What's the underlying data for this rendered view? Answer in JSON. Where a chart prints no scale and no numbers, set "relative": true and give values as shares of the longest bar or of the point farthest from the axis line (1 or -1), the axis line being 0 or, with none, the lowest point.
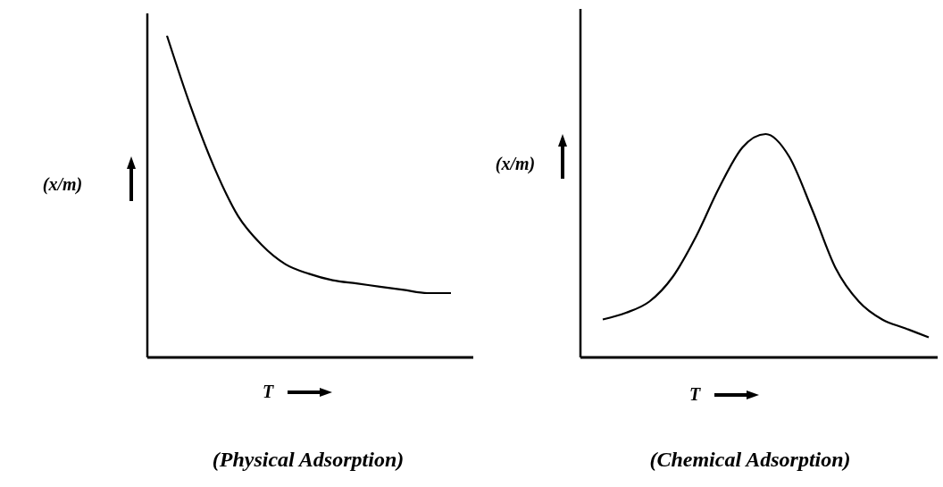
{
  "chart_data": [
    {
      "type": "line",
      "title": "(Physical Adsorption)",
      "ylabel": "(x/m)",
      "xlabel": "T",
      "relative": true,
      "color": "#000000",
      "categories": [
        null,
        null,
        null,
        null,
        null,
        null,
        null,
        null,
        null,
        null,
        null,
        null,
        null
      ],
      "values": [
        1,
        0.78,
        0.59,
        0.44,
        0.35,
        0.29,
        0.26,
        0.24,
        0.23,
        0.22,
        0.21,
        0.2,
        0.2
      ]
    },
    {
      "type": "line",
      "title": "(Chemical Adsorption)",
      "ylabel": "(x/m)",
      "xlabel": "T",
      "relative": true,
      "color": "#000000",
      "categories": [
        null,
        null,
        null,
        null,
        null,
        null,
        null,
        null,
        null,
        null,
        null,
        null,
        null,
        null,
        null
      ],
      "values": [
        0.17,
        0.2,
        0.25,
        0.36,
        0.54,
        0.76,
        0.94,
        1,
        0.9,
        0.66,
        0.4,
        0.25,
        0.17,
        0.13,
        0.09
      ]
    }
  ]
}
